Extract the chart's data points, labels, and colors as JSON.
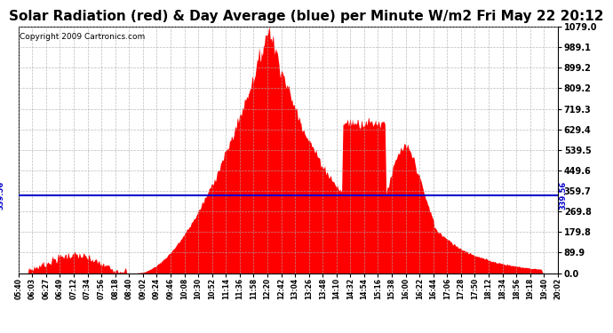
{
  "title": "Solar Radiation (red) & Day Average (blue) per Minute W/m2 Fri May 22 20:12",
  "copyright": "Copyright 2009 Cartronics.com",
  "ymax": 1079.0,
  "ymin": 0.0,
  "yticks": [
    0.0,
    89.9,
    179.8,
    269.8,
    359.7,
    449.6,
    539.5,
    629.4,
    719.3,
    809.2,
    899.2,
    989.1,
    1079.0
  ],
  "day_average": 339.56,
  "avg_label": "339.56",
  "bg_color": "#ffffff",
  "fill_color": "#ff0000",
  "line_color": "#0000cc",
  "title_fontsize": 11,
  "copyright_fontsize": 6.5,
  "xtick_labels": [
    "05:40",
    "06:03",
    "06:27",
    "06:49",
    "07:12",
    "07:34",
    "07:56",
    "08:18",
    "08:40",
    "09:02",
    "09:24",
    "09:46",
    "10:08",
    "10:30",
    "10:52",
    "11:14",
    "11:36",
    "11:58",
    "12:20",
    "12:42",
    "13:04",
    "13:26",
    "13:48",
    "14:10",
    "14:32",
    "14:54",
    "15:16",
    "15:38",
    "16:00",
    "16:22",
    "16:44",
    "17:06",
    "17:28",
    "17:50",
    "18:12",
    "18:34",
    "18:56",
    "19:18",
    "19:40",
    "20:02"
  ],
  "n_points": 862,
  "peak_idx": 400,
  "peak_val": 1079.0
}
